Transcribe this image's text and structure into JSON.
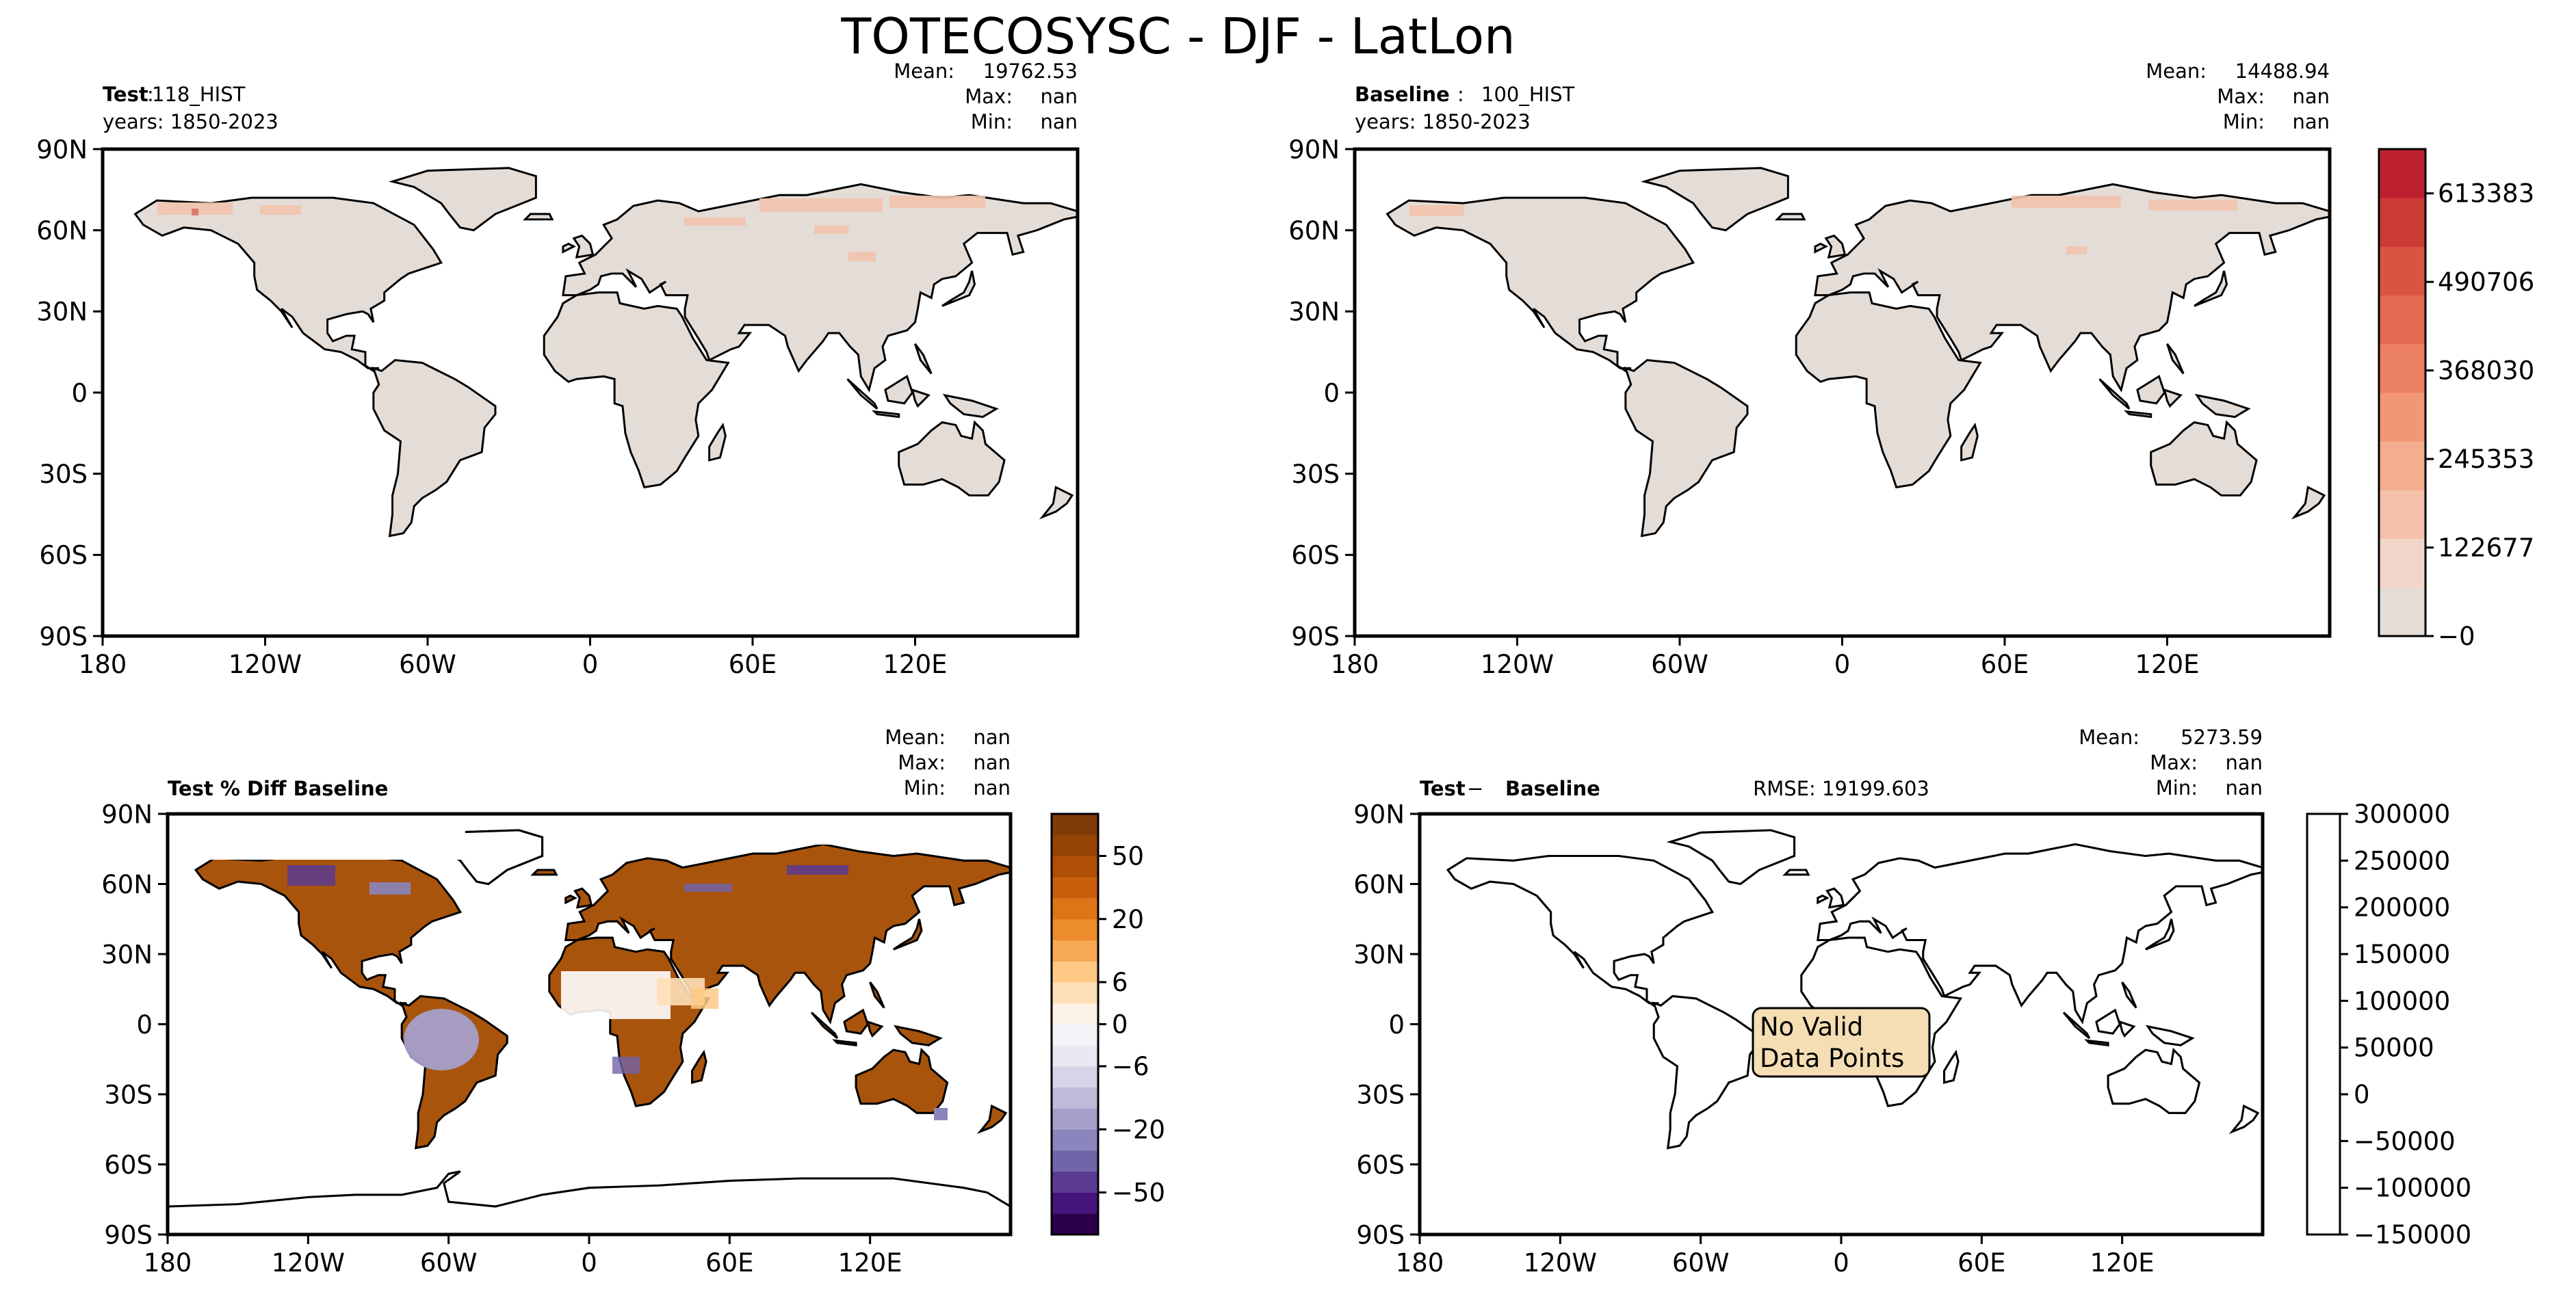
{
  "figure": {
    "title": "TOTECOSYSC - DJF - LatLon"
  },
  "colors": {
    "land_fill": "#e3dcd7",
    "coast": "#000000",
    "oranges": [
      "#e3dcd7",
      "#f2d5c9",
      "#f6c1aa",
      "#f4ad8f",
      "#f29776",
      "#ec8063",
      "#e46a51",
      "#da5442",
      "#cd3b36",
      "#bd202e"
    ],
    "puor_neg": [
      "#2d004b",
      "#45157a",
      "#5b3a92",
      "#7264a8",
      "#8a85bc",
      "#a59fcb",
      "#bfbad9",
      "#d7d4e8",
      "#e9e7f2",
      "#f4f3f8"
    ],
    "puor_pos": [
      "#fbf1e5",
      "#fde0b8",
      "#fdc985",
      "#f7a953",
      "#ec8c2c",
      "#dd7517",
      "#c85f0c",
      "#b05006",
      "#964404",
      "#7f3b08"
    ],
    "nodata_box": "#f5deb3"
  },
  "chart_data": [
    {
      "panel": "test",
      "type": "heatmap",
      "projection": "LatLon",
      "label_bold": "Test",
      "label_value": "118_HIST",
      "years": "years: 1850-2023",
      "stats": {
        "mean_label": "Mean:",
        "mean": "19762.53",
        "max_label": "Max:",
        "max": "nan",
        "min_label": "Min:",
        "min": "nan"
      },
      "xticks": [
        "180",
        "120W",
        "60W",
        "0",
        "60E",
        "120E"
      ],
      "yticks": [
        "90N",
        "60N",
        "30N",
        "0",
        "30S",
        "60S",
        "90S"
      ],
      "xlim": [
        -180,
        180
      ],
      "ylim": [
        -90,
        90
      ]
    },
    {
      "panel": "baseline",
      "type": "heatmap",
      "projection": "LatLon",
      "label_bold": "Baseline",
      "label_value": "100_HIST",
      "years": "years: 1850-2023",
      "stats": {
        "mean_label": "Mean:",
        "mean": "14488.94",
        "max_label": "Max:",
        "max": "nan",
        "min_label": "Min:",
        "min": "nan"
      },
      "xticks": [
        "180",
        "120W",
        "60W",
        "0",
        "60E",
        "120E"
      ],
      "yticks": [
        "90N",
        "60N",
        "30N",
        "0",
        "30S",
        "60S",
        "90S"
      ],
      "xlim": [
        -180,
        180
      ],
      "ylim": [
        -90,
        90
      ],
      "colorbar": {
        "cmap": "Oranges",
        "levels": 10,
        "ticks": [
          {
            "value": 0,
            "label": "−0"
          },
          {
            "value": 122677,
            "label": "122677"
          },
          {
            "value": 245353,
            "label": "245353"
          },
          {
            "value": 368030,
            "label": "368030"
          },
          {
            "value": 490706,
            "label": "490706"
          },
          {
            "value": 613383,
            "label": "613383"
          }
        ],
        "range": [
          0,
          674721
        ]
      }
    },
    {
      "panel": "pct_diff",
      "type": "heatmap",
      "projection": "LatLon",
      "label_bold": "Test % Diff Baseline",
      "stats": {
        "mean_label": "Mean:",
        "mean": "nan",
        "max_label": "Max:",
        "max": "nan",
        "min_label": "Min:",
        "min": "nan"
      },
      "xticks": [
        "180",
        "120W",
        "60W",
        "0",
        "60E",
        "120E"
      ],
      "yticks": [
        "90N",
        "60N",
        "30N",
        "0",
        "30S",
        "60S",
        "90S"
      ],
      "xlim": [
        -180,
        180
      ],
      "ylim": [
        -90,
        90
      ],
      "colorbar": {
        "cmap": "PuOr_r",
        "levels": 20,
        "ticks": [
          "50",
          "20",
          "6",
          "0",
          "−6",
          "−20",
          "−50"
        ]
      }
    },
    {
      "panel": "diff",
      "type": "heatmap",
      "projection": "LatLon",
      "label_bold": "Test",
      "label_op": "− ",
      "label_bold2": "Baseline",
      "rmse": "RMSE: 19199.603",
      "stats": {
        "mean_label": "Mean:",
        "mean": "5273.59",
        "max_label": "Max:",
        "max": "nan",
        "min_label": "Min:",
        "min": "nan"
      },
      "nodata_text_1": "No Valid",
      "nodata_text_2": "Data Points",
      "xticks": [
        "180",
        "120W",
        "60W",
        "0",
        "60E",
        "120E"
      ],
      "yticks": [
        "90N",
        "60N",
        "30N",
        "0",
        "30S",
        "60S",
        "90S"
      ],
      "xlim": [
        -180,
        180
      ],
      "ylim": [
        -90,
        90
      ],
      "colorbar": {
        "ticks": [
          "300000",
          "250000",
          "200000",
          "150000",
          "100000",
          "50000",
          "0",
          "−50000",
          "−100000",
          "−150000"
        ],
        "range": [
          -150000,
          300000
        ]
      }
    }
  ]
}
